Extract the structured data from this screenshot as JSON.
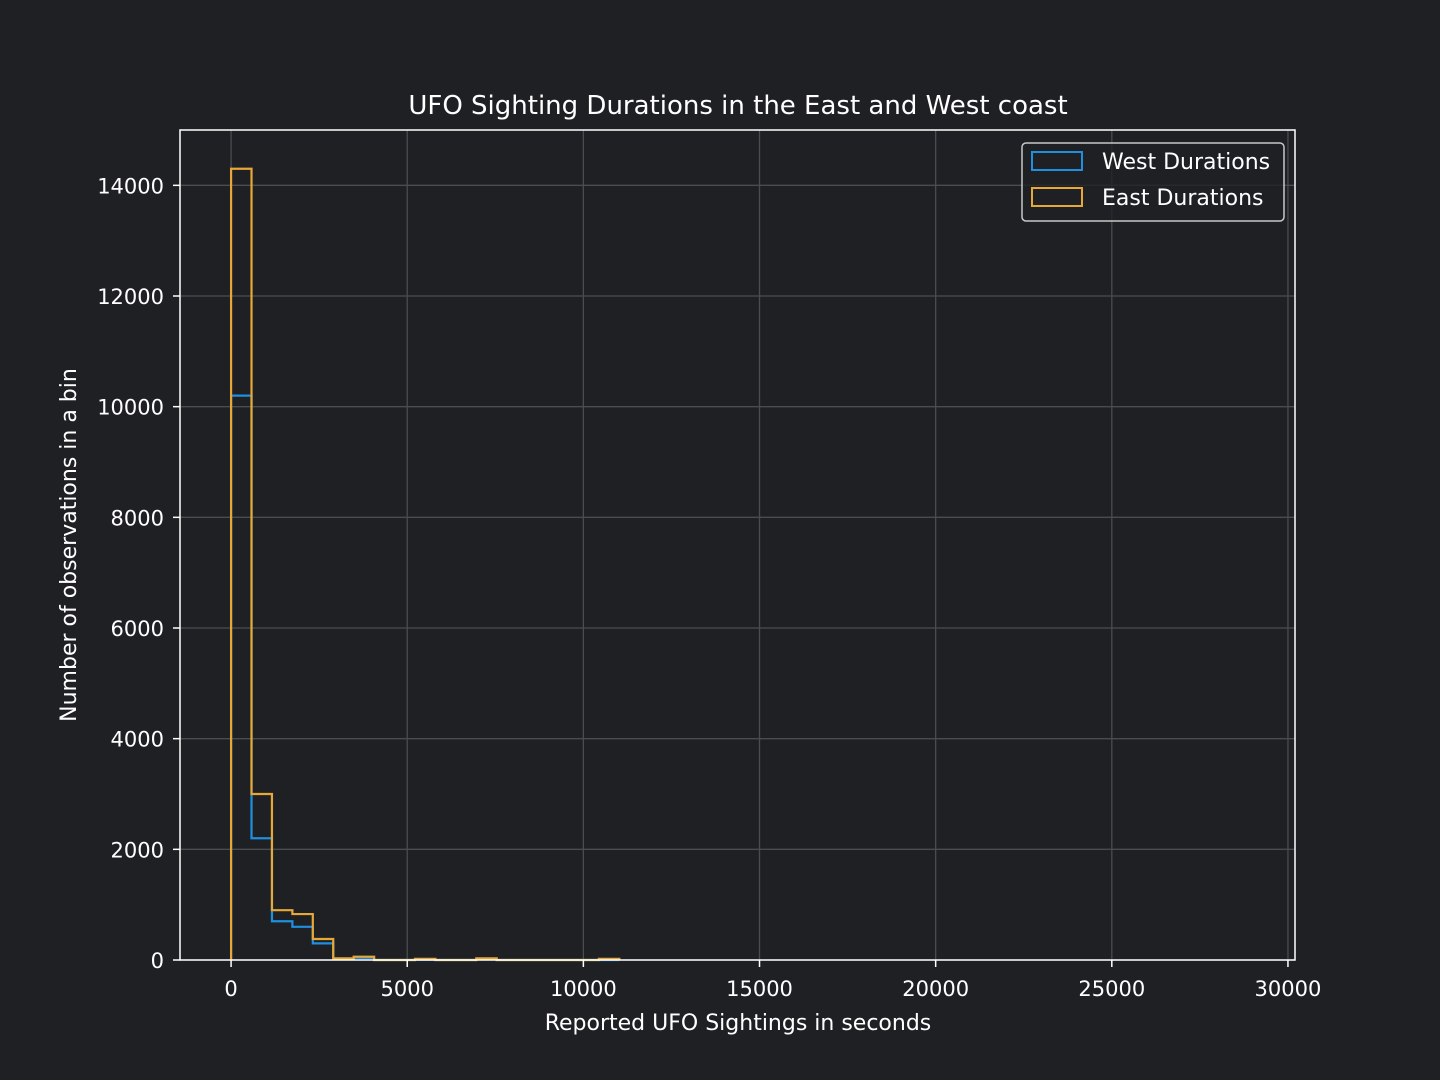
{
  "chart_data": {
    "type": "histogram",
    "title": "UFO Sighting Durations in  the East and West coast",
    "xlabel": "Reported UFO Sightings in seconds",
    "ylabel": "Number of observations in a bin",
    "xlim": [
      -1450,
      30200
    ],
    "ylim": [
      0,
      15000
    ],
    "x_ticks": [
      0,
      5000,
      10000,
      15000,
      20000,
      25000,
      30000
    ],
    "y_ticks": [
      0,
      2000,
      4000,
      6000,
      8000,
      10000,
      12000,
      14000
    ],
    "grid": true,
    "legend_position": "top-right",
    "histtype": "step",
    "bin_edges": [
      0,
      580,
      1160,
      1740,
      2320,
      2900,
      3480,
      4060,
      4640,
      5220,
      5800,
      6380,
      6960,
      7540,
      8120,
      8700,
      9280,
      9860,
      10440,
      11020
    ],
    "series": [
      {
        "name": "West Durations",
        "color": "#1f8fe0",
        "counts": [
          10200,
          2200,
          700,
          600,
          300,
          20,
          40,
          0,
          0,
          5,
          0,
          0,
          10,
          0,
          0,
          0,
          0,
          0,
          0
        ]
      },
      {
        "name": "East Durations",
        "color": "#e8a838",
        "counts": [
          14300,
          3000,
          900,
          830,
          380,
          30,
          60,
          0,
          0,
          20,
          0,
          0,
          30,
          0,
          0,
          0,
          0,
          0,
          20
        ]
      }
    ],
    "colors": {
      "background": "#1e2024",
      "grid": "#4a4c50",
      "axes": "#ffffff",
      "text": "#ffffff"
    }
  }
}
